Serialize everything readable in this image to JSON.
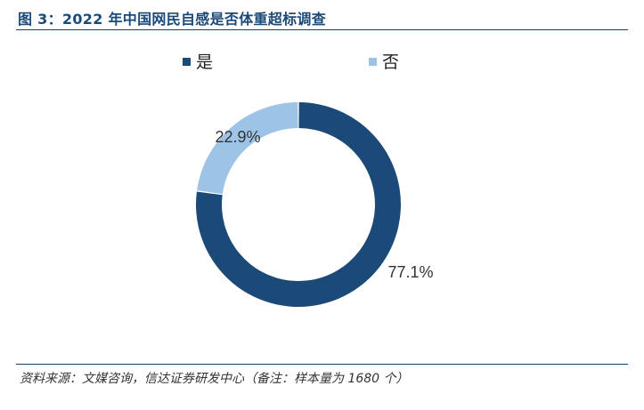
{
  "figure": {
    "title": "图 3：2022 年中国网民自感是否体重超标调查",
    "source": "资料来源：文媒咨询，信达证券研发中心（备注：样本量为 1680 个）"
  },
  "chart_data": {
    "type": "pie",
    "style": "donut",
    "start_angle_deg": 0,
    "direction": "clockwise",
    "categories": [
      "是",
      "否"
    ],
    "values": [
      77.1,
      22.9
    ],
    "data_labels": [
      "77.1%",
      "22.9%"
    ],
    "colors": [
      "#1c4a78",
      "#9dc3e6"
    ],
    "legend_position": "top",
    "title": "",
    "xlabel": "",
    "ylabel": ""
  }
}
